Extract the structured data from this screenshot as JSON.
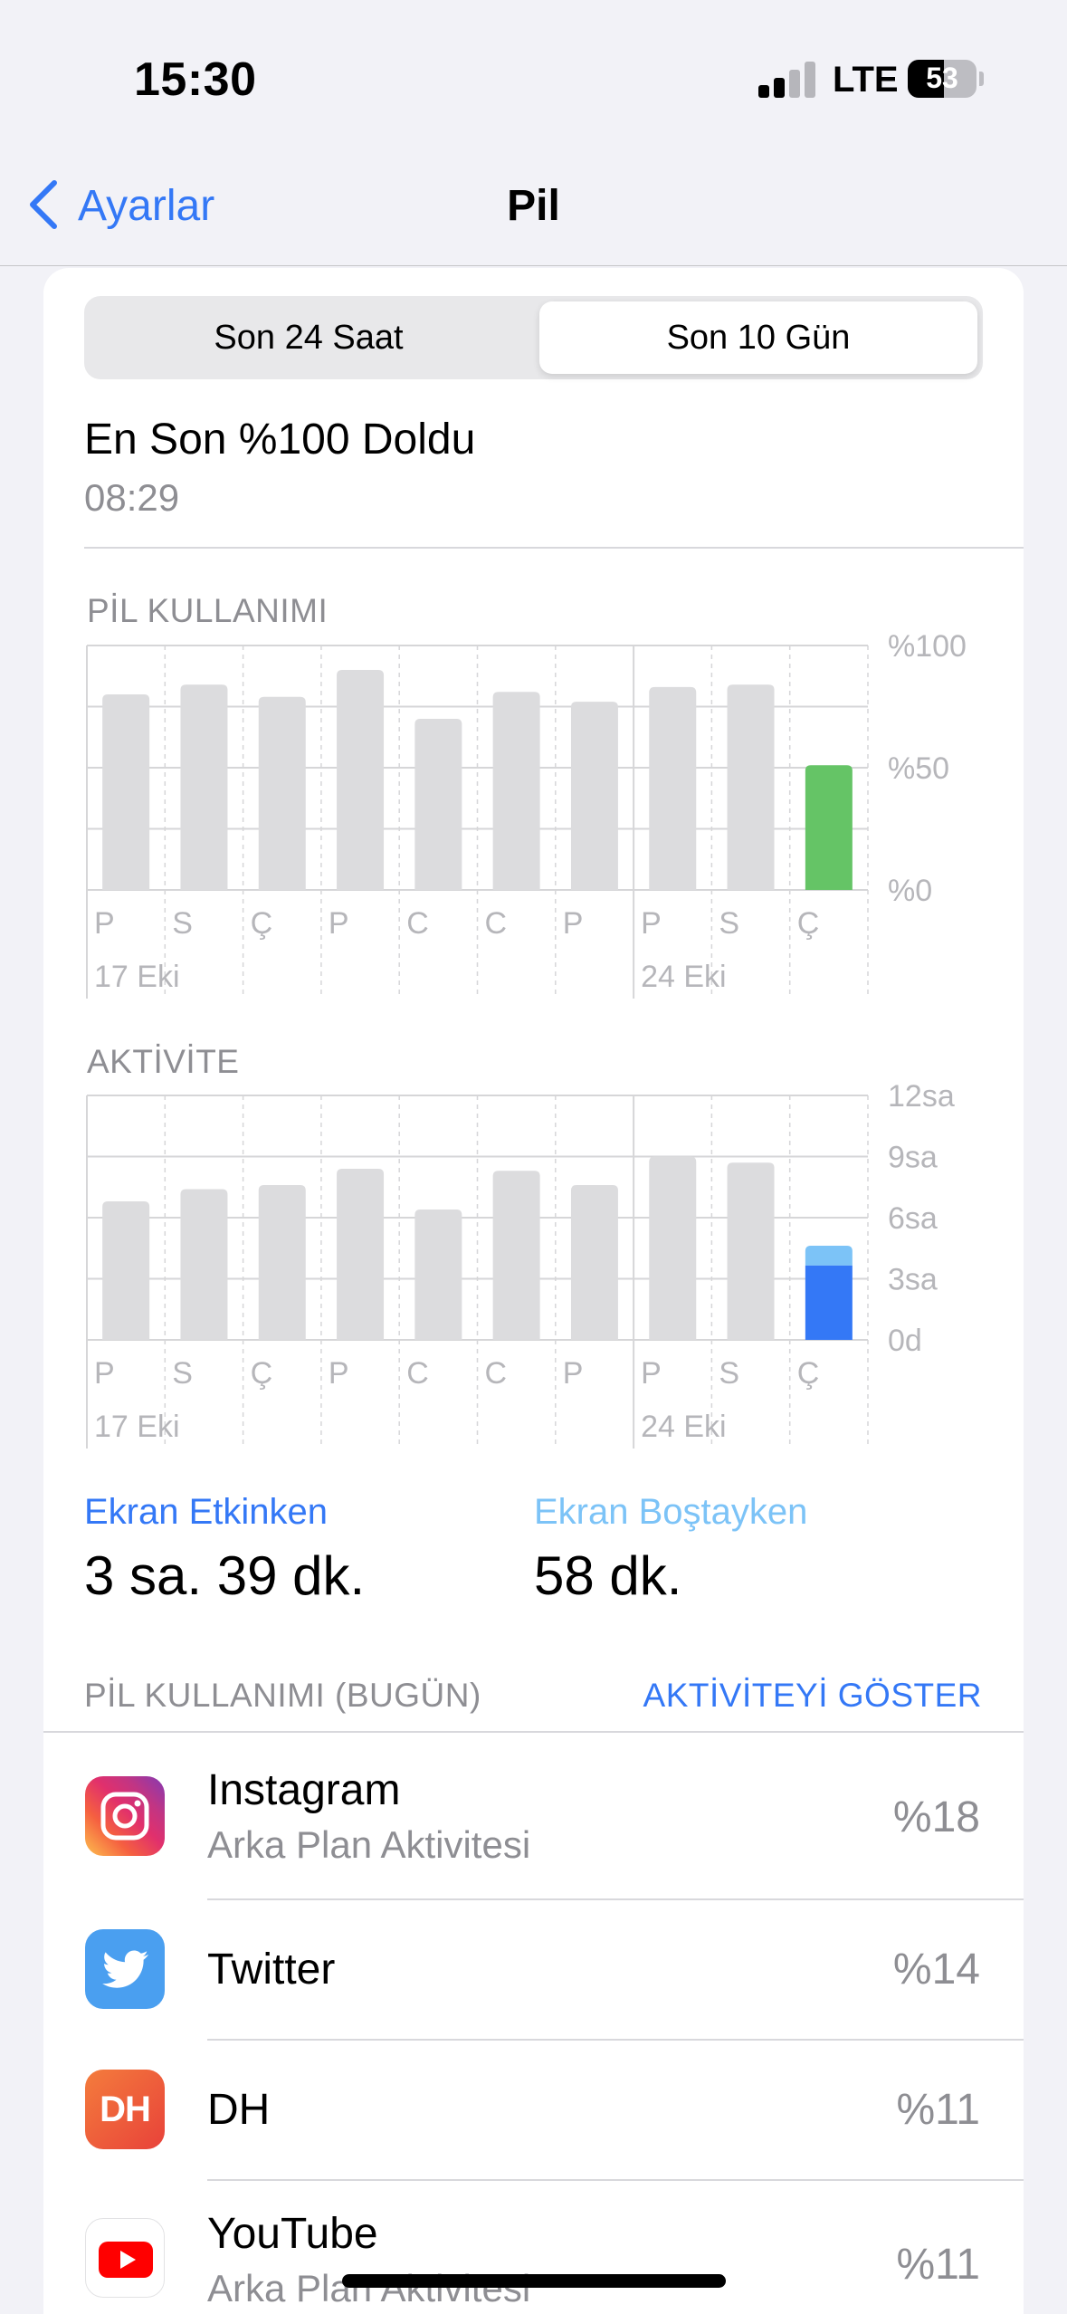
{
  "status_bar": {
    "time": "15:30",
    "network": "LTE",
    "battery": "53",
    "battery_level": 0.53
  },
  "nav": {
    "back_label": "Ayarlar",
    "title": "Pil"
  },
  "segmented": {
    "options": [
      "Son 24 Saat",
      "Son 10 Gün"
    ],
    "selected_index": 1
  },
  "last_charge": {
    "title": "En Son %100 Doldu",
    "time": "08:29"
  },
  "battery_chart_title": "PİL KULLANIMI",
  "activity_chart_title": "AKTİVİTE",
  "chart_data": [
    {
      "type": "bar",
      "title": "PİL KULLANIMI",
      "categories": [
        "P",
        "S",
        "Ç",
        "P",
        "C",
        "C",
        "P",
        "P",
        "S",
        "Ç"
      ],
      "date_labels": [
        {
          "index": 0,
          "label": "17 Eki"
        },
        {
          "index": 7,
          "label": "24 Eki"
        }
      ],
      "values": [
        80,
        84,
        79,
        90,
        70,
        81,
        77,
        83,
        84,
        51
      ],
      "highlight_index": 9,
      "y_ticks": [
        "%100",
        "%50",
        "%0"
      ],
      "ylim": [
        0,
        100
      ],
      "colors": {
        "bar": "#dcdcde",
        "highlight": "#65c466"
      }
    },
    {
      "type": "bar",
      "title": "AKTİVİTE",
      "categories": [
        "P",
        "S",
        "Ç",
        "P",
        "C",
        "C",
        "P",
        "P",
        "S",
        "Ç"
      ],
      "date_labels": [
        {
          "index": 0,
          "label": "17 Eki"
        },
        {
          "index": 7,
          "label": "24 Eki"
        }
      ],
      "values": [
        6.8,
        7.4,
        7.6,
        8.4,
        6.4,
        8.3,
        7.6,
        9.0,
        8.7,
        4.6
      ],
      "highlight_index": 9,
      "highlight_split": {
        "screen_on": 3.65,
        "screen_off": 0.97
      },
      "y_ticks": [
        "12sa",
        "9sa",
        "6sa",
        "3sa",
        "0d"
      ],
      "ylim": [
        0,
        12
      ],
      "colors": {
        "bar": "#dcdcde",
        "screen_on": "#3478f6",
        "screen_off": "#7cc3f7"
      }
    }
  ],
  "legend": {
    "active_label": "Ekran Etkinken",
    "active_value": "3 sa. 39 dk.",
    "idle_label": "Ekran Boştayken",
    "idle_value": "58 dk."
  },
  "usage_list": {
    "header": "PİL KULLANIMI (BUGÜN)",
    "action": "AKTİVİTEYİ GÖSTER",
    "apps": [
      {
        "name": "Instagram",
        "sub": "Arka Plan Aktivitesi",
        "percent": "%18",
        "icon": "instagram-icon"
      },
      {
        "name": "Twitter",
        "sub": "",
        "percent": "%14",
        "icon": "twitter-icon"
      },
      {
        "name": "DH",
        "sub": "",
        "percent": "%11",
        "icon": "dh-icon",
        "icon_text": "DH"
      },
      {
        "name": "YouTube",
        "sub": "Arka Plan Aktivitesi",
        "percent": "%11",
        "icon": "youtube-icon"
      }
    ]
  },
  "colors": {
    "accent": "#3478f6",
    "idle_accent": "#7cc3f7",
    "secondary_text": "#8e8e93"
  }
}
